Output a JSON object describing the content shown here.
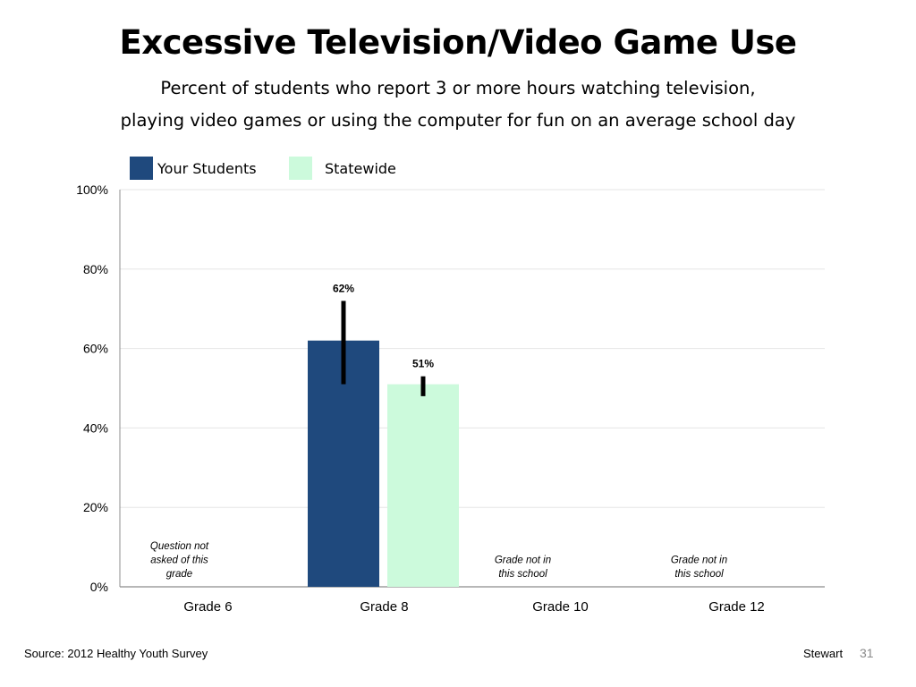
{
  "slide": {
    "title": "Excessive Television/Video Game Use",
    "subtitle_line1": "Percent of students who report 3 or more hours watching television,",
    "subtitle_line2": "playing video games or using the computer for fun on an average school day",
    "source": "Source: 2012 Healthy Youth Survey",
    "footer_name": "Stewart",
    "page_number": "31"
  },
  "legend": {
    "items": [
      {
        "label": "Your Students",
        "color": "#1f497d"
      },
      {
        "label": "Statewide",
        "color": "#ccfadc"
      }
    ]
  },
  "chart_data": {
    "type": "bar",
    "categories": [
      "Grade 6",
      "Grade 8",
      "Grade 10",
      "Grade 12"
    ],
    "series": [
      {
        "name": "Your Students",
        "values": [
          null,
          62,
          null,
          null
        ],
        "error": [
          null,
          [
            51,
            72
          ],
          null,
          null
        ],
        "color": "#1f497d"
      },
      {
        "name": "Statewide",
        "values": [
          null,
          51,
          null,
          null
        ],
        "error": [
          null,
          [
            48,
            53
          ],
          null,
          null
        ],
        "color": "#ccfadc"
      }
    ],
    "data_labels": [
      null,
      [
        "62%",
        "51%"
      ],
      null,
      null
    ],
    "notes": [
      [
        "Question not",
        "asked of this",
        "grade"
      ],
      null,
      [
        "Grade not in",
        "this school"
      ],
      [
        "Grade not in",
        "this school"
      ]
    ],
    "ylim": [
      0,
      100
    ],
    "yticks": [
      0,
      20,
      40,
      60,
      80,
      100
    ],
    "ytick_labels": [
      "0%",
      "20%",
      "40%",
      "60%",
      "80%",
      "100%"
    ],
    "grid": true,
    "legend_position": "top-left",
    "xlabel": "",
    "ylabel": ""
  }
}
